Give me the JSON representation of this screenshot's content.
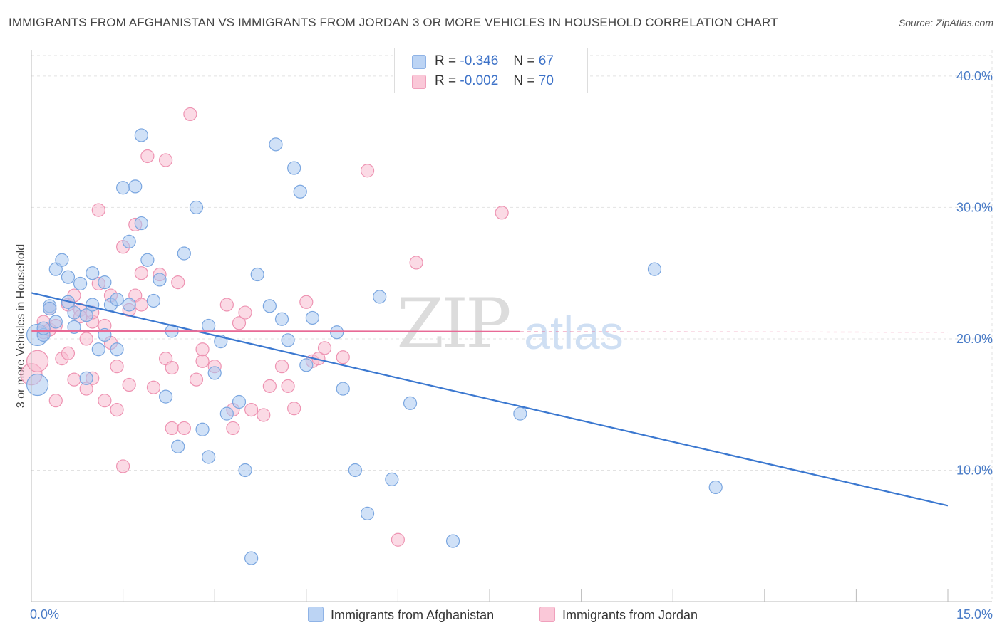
{
  "title": "IMMIGRANTS FROM AFGHANISTAN VS IMMIGRANTS FROM JORDAN 3 OR MORE VEHICLES IN HOUSEHOLD CORRELATION CHART",
  "source": "Source: ZipAtlas.com",
  "watermark": {
    "zip": "ZIP",
    "atlas": "atlas"
  },
  "legend": {
    "r_label": "R =",
    "n_label": "N =",
    "rows": [
      {
        "r": "-0.346",
        "n": "67"
      },
      {
        "r": "-0.002",
        "n": "70"
      }
    ]
  },
  "colors": {
    "afghanistan_fill": "#aac8f0",
    "afghanistan_stroke": "#7aa6e0",
    "afghanistan_line": "#3b78d0",
    "jordan_fill": "#f8bcd0",
    "jordan_stroke": "#ee93b2",
    "jordan_line": "#e86a96",
    "tick": "#4a7cc7",
    "grid": "#e2e2e2"
  },
  "chart_data": {
    "type": "scatter",
    "title": "IMMIGRANTS FROM AFGHANISTAN VS IMMIGRANTS FROM JORDAN 3 OR MORE VEHICLES IN HOUSEHOLD CORRELATION CHART",
    "xlabel": "",
    "ylabel": "3 or more Vehicles in Household",
    "xlim": [
      0,
      15
    ],
    "ylim": [
      0,
      42
    ],
    "x_tick_labels": [
      "0.0%",
      "15.0%"
    ],
    "y_ticks": [
      10,
      20,
      30,
      40
    ],
    "y_tick_labels": [
      "10.0%",
      "20.0%",
      "30.0%",
      "40.0%"
    ],
    "grid": true,
    "legend_position": "bottom",
    "series": [
      {
        "name": "Immigrants from Afghanistan",
        "trend": {
          "x": [
            0,
            15
          ],
          "y": [
            23.5,
            7.3
          ]
        },
        "points": [
          [
            0.1,
            16.5
          ],
          [
            0.1,
            20.3
          ],
          [
            0.2,
            20.3
          ],
          [
            0.2,
            20.8
          ],
          [
            0.3,
            22.5
          ],
          [
            0.3,
            22.3
          ],
          [
            0.4,
            21.3
          ],
          [
            0.4,
            25.3
          ],
          [
            0.5,
            26.0
          ],
          [
            0.6,
            24.7
          ],
          [
            0.6,
            22.8
          ],
          [
            0.7,
            22.0
          ],
          [
            0.7,
            20.9
          ],
          [
            0.8,
            24.2
          ],
          [
            0.9,
            21.8
          ],
          [
            0.9,
            17.0
          ],
          [
            1.0,
            25.0
          ],
          [
            1.0,
            22.6
          ],
          [
            1.1,
            19.2
          ],
          [
            1.2,
            20.3
          ],
          [
            1.2,
            24.3
          ],
          [
            1.3,
            22.6
          ],
          [
            1.4,
            23.0
          ],
          [
            1.4,
            19.2
          ],
          [
            1.5,
            31.5
          ],
          [
            1.6,
            22.6
          ],
          [
            1.6,
            27.4
          ],
          [
            1.7,
            31.6
          ],
          [
            1.8,
            28.8
          ],
          [
            1.8,
            35.5
          ],
          [
            1.9,
            26.0
          ],
          [
            2.0,
            22.9
          ],
          [
            2.1,
            24.5
          ],
          [
            2.2,
            15.6
          ],
          [
            2.3,
            20.6
          ],
          [
            2.4,
            11.8
          ],
          [
            2.5,
            26.5
          ],
          [
            2.7,
            30.0
          ],
          [
            2.8,
            13.1
          ],
          [
            2.9,
            11.0
          ],
          [
            2.9,
            21.0
          ],
          [
            3.0,
            17.4
          ],
          [
            3.1,
            19.8
          ],
          [
            3.2,
            14.3
          ],
          [
            3.4,
            15.2
          ],
          [
            3.5,
            10.0
          ],
          [
            3.6,
            3.3
          ],
          [
            3.7,
            24.9
          ],
          [
            3.9,
            22.5
          ],
          [
            4.0,
            34.8
          ],
          [
            4.1,
            21.5
          ],
          [
            4.2,
            19.9
          ],
          [
            4.3,
            33.0
          ],
          [
            4.4,
            31.2
          ],
          [
            4.5,
            18.0
          ],
          [
            4.6,
            21.6
          ],
          [
            5.0,
            20.5
          ],
          [
            5.1,
            16.2
          ],
          [
            5.3,
            10.0
          ],
          [
            5.5,
            6.7
          ],
          [
            5.7,
            23.2
          ],
          [
            5.9,
            9.3
          ],
          [
            6.2,
            15.1
          ],
          [
            6.9,
            4.6
          ],
          [
            8.0,
            14.3
          ],
          [
            10.2,
            25.3
          ],
          [
            11.2,
            8.7
          ]
        ]
      },
      {
        "name": "Immigrants from Jordan",
        "trend": {
          "x": [
            0,
            8.0
          ],
          "y": [
            20.6,
            20.55
          ],
          "dashed_to": [
            15,
            20.5
          ]
        },
        "points": [
          [
            0.0,
            17.3
          ],
          [
            0.1,
            18.3
          ],
          [
            0.2,
            20.5
          ],
          [
            0.2,
            21.3
          ],
          [
            0.3,
            20.7
          ],
          [
            0.3,
            22.3
          ],
          [
            0.4,
            15.3
          ],
          [
            0.4,
            21.0
          ],
          [
            0.5,
            18.5
          ],
          [
            0.6,
            22.6
          ],
          [
            0.6,
            18.9
          ],
          [
            0.7,
            23.3
          ],
          [
            0.7,
            16.9
          ],
          [
            0.8,
            22.2
          ],
          [
            0.8,
            21.7
          ],
          [
            0.9,
            16.2
          ],
          [
            0.9,
            20.0
          ],
          [
            1.0,
            21.3
          ],
          [
            1.0,
            22.0
          ],
          [
            1.0,
            17.0
          ],
          [
            1.1,
            29.8
          ],
          [
            1.1,
            24.2
          ],
          [
            1.2,
            15.3
          ],
          [
            1.2,
            21.0
          ],
          [
            1.3,
            19.7
          ],
          [
            1.3,
            23.3
          ],
          [
            1.4,
            17.9
          ],
          [
            1.4,
            14.6
          ],
          [
            1.5,
            27.0
          ],
          [
            1.5,
            10.3
          ],
          [
            1.6,
            16.5
          ],
          [
            1.6,
            22.2
          ],
          [
            1.7,
            28.7
          ],
          [
            1.7,
            23.3
          ],
          [
            1.8,
            25.0
          ],
          [
            1.8,
            22.6
          ],
          [
            1.9,
            33.9
          ],
          [
            2.0,
            16.3
          ],
          [
            2.1,
            24.9
          ],
          [
            2.2,
            18.5
          ],
          [
            2.2,
            33.6
          ],
          [
            2.3,
            13.2
          ],
          [
            2.3,
            17.8
          ],
          [
            2.4,
            24.3
          ],
          [
            2.5,
            13.2
          ],
          [
            2.6,
            37.1
          ],
          [
            2.7,
            16.9
          ],
          [
            2.8,
            18.3
          ],
          [
            2.8,
            19.2
          ],
          [
            3.0,
            17.9
          ],
          [
            3.2,
            22.6
          ],
          [
            3.3,
            13.2
          ],
          [
            3.3,
            14.6
          ],
          [
            3.4,
            21.2
          ],
          [
            3.5,
            22.0
          ],
          [
            3.6,
            14.6
          ],
          [
            3.8,
            14.2
          ],
          [
            3.9,
            16.4
          ],
          [
            4.1,
            17.9
          ],
          [
            4.2,
            16.4
          ],
          [
            4.3,
            14.7
          ],
          [
            4.5,
            22.8
          ],
          [
            4.6,
            18.3
          ],
          [
            4.7,
            18.5
          ],
          [
            4.8,
            19.3
          ],
          [
            5.1,
            18.6
          ],
          [
            5.5,
            32.8
          ],
          [
            6.0,
            4.7
          ],
          [
            6.3,
            25.8
          ],
          [
            7.7,
            29.6
          ]
        ]
      }
    ]
  },
  "x_axis": {
    "left_label": "0.0%",
    "right_label": "15.0%"
  },
  "y_axis": {
    "label": "3 or more Vehicles in Household"
  },
  "bottom_legend": [
    {
      "label": "Immigrants from Afghanistan"
    },
    {
      "label": "Immigrants from Jordan"
    }
  ]
}
